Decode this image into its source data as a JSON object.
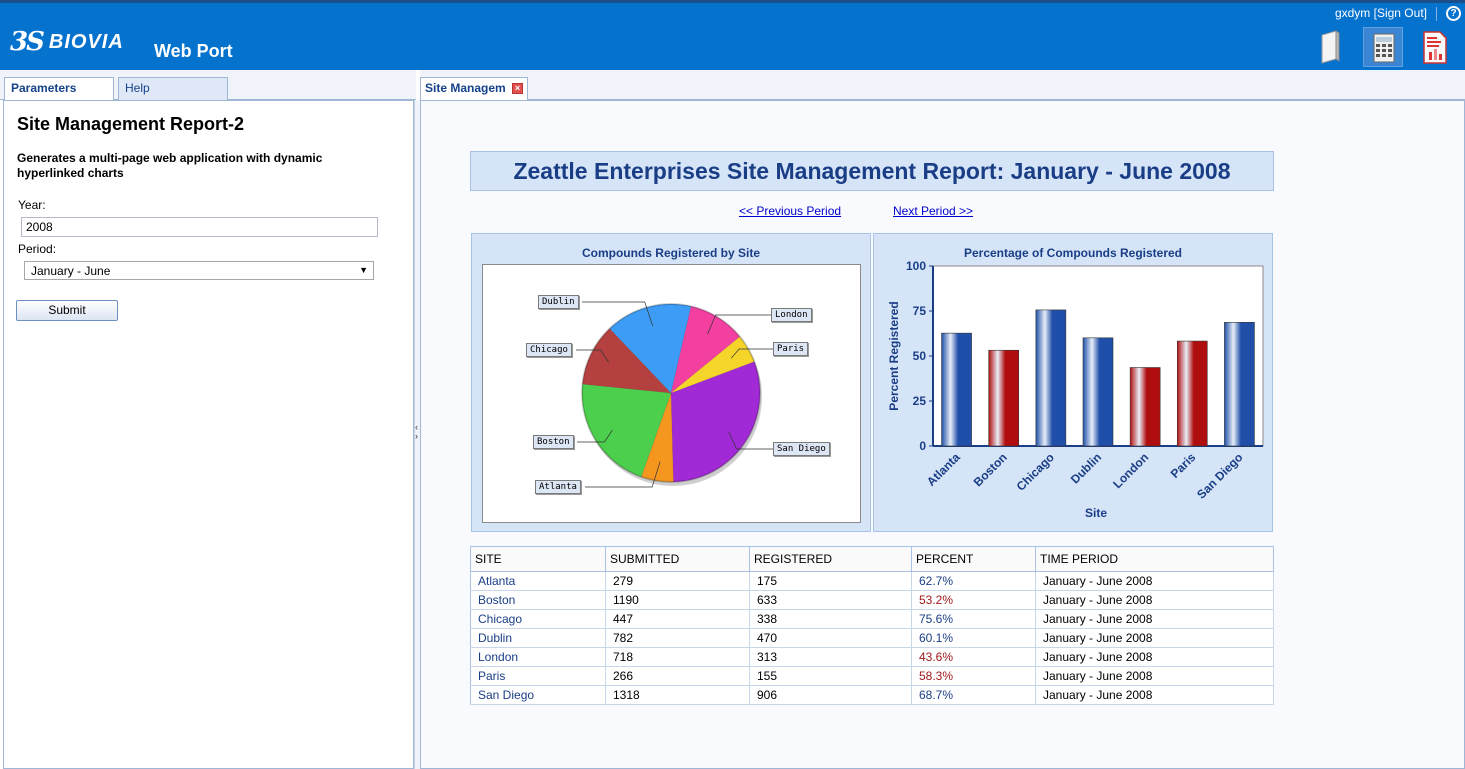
{
  "header": {
    "logo_ds": "3S",
    "logo_brand": "BIOVIA",
    "app_name": "Web Port",
    "user": "gxdym",
    "sign_out": "[Sign Out]",
    "help": "?",
    "colors": {
      "header_bg": "#0572ce"
    }
  },
  "left": {
    "tabs": [
      {
        "label": "Parameters"
      },
      {
        "label": "Help"
      }
    ],
    "title": "Site Management Report-2",
    "description": "Generates a multi-page web application with dynamic hyperlinked charts",
    "year_label": "Year:",
    "year_value": "2008",
    "period_label": "Period:",
    "period_value": "January - June",
    "submit_label": "Submit"
  },
  "right": {
    "tab_label": "Site Managem",
    "main_title": "Zeattle Enterprises Site Management Report: January - June 2008",
    "prev_link": "<< Previous Period",
    "next_link": "Next Period >>"
  },
  "chart_data": [
    {
      "type": "pie",
      "title": "Compounds Registered by Site",
      "categories": [
        "Atlanta",
        "Boston",
        "Chicago",
        "Dublin",
        "London",
        "Paris",
        "San Diego"
      ],
      "values": [
        175,
        633,
        338,
        470,
        313,
        155,
        906
      ],
      "colors": [
        "#f5961e",
        "#4ccf4c",
        "#b54040",
        "#3d9cf5",
        "#f23fa0",
        "#f5d52a",
        "#a22ad6"
      ],
      "legend": "none"
    },
    {
      "type": "bar",
      "title": "Percentage of Compounds Registered",
      "categories": [
        "Atlanta",
        "Boston",
        "Chicago",
        "Dublin",
        "London",
        "Paris",
        "San Diego"
      ],
      "values": [
        62.7,
        53.2,
        75.6,
        60.1,
        43.6,
        58.3,
        68.7
      ],
      "bar_colors": [
        "#1f4fa8",
        "#b00e0e",
        "#1f4fa8",
        "#1f4fa8",
        "#b00e0e",
        "#b00e0e",
        "#1f4fa8"
      ],
      "xlabel": "Site",
      "ylabel": "Percent Registered",
      "ylim": [
        0,
        100
      ],
      "yticks": [
        "0",
        "25",
        "50",
        "75",
        "100"
      ],
      "grid": false
    }
  ],
  "table": {
    "columns": [
      "SITE",
      "SUBMITTED",
      "REGISTERED",
      "PERCENT",
      "TIME PERIOD"
    ],
    "rows": [
      {
        "site": "Atlanta",
        "submitted": "279",
        "registered": "175",
        "percent": "62.7%",
        "period": "January - June 2008",
        "pct_color": "blue"
      },
      {
        "site": "Boston",
        "submitted": "1190",
        "registered": "633",
        "percent": "53.2%",
        "period": "January - June 2008",
        "pct_color": "red"
      },
      {
        "site": "Chicago",
        "submitted": "447",
        "registered": "338",
        "percent": "75.6%",
        "period": "January - June 2008",
        "pct_color": "blue"
      },
      {
        "site": "Dublin",
        "submitted": "782",
        "registered": "470",
        "percent": "60.1%",
        "period": "January - June 2008",
        "pct_color": "blue"
      },
      {
        "site": "London",
        "submitted": "718",
        "registered": "313",
        "percent": "43.6%",
        "period": "January - June 2008",
        "pct_color": "red"
      },
      {
        "site": "Paris",
        "submitted": "266",
        "registered": "155",
        "percent": "58.3%",
        "period": "January - June 2008",
        "pct_color": "red"
      },
      {
        "site": "San Diego",
        "submitted": "1318",
        "registered": "906",
        "percent": "68.7%",
        "period": "January - June 2008",
        "pct_color": "blue"
      }
    ]
  }
}
